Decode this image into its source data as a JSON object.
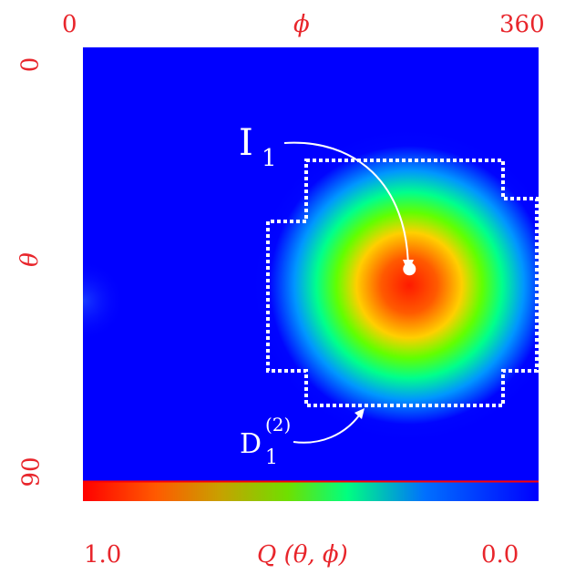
{
  "chart_data": {
    "type": "heatmap",
    "x_axis": {
      "label": "ϕ",
      "range": [
        0,
        360
      ],
      "tick_labels": [
        "0",
        "360"
      ]
    },
    "y_axis": {
      "label": "θ",
      "range": [
        0,
        90
      ],
      "tick_labels": [
        "0",
        "90"
      ],
      "inverted": true
    },
    "colorbar": {
      "label": "Q (θ, ϕ)",
      "range": [
        1.0,
        0.0
      ],
      "tick_labels": [
        "1.0",
        "0.0"
      ],
      "colors": [
        "#ff0000",
        "#ff8000",
        "#c8c800",
        "#40ff00",
        "#00ff80",
        "#0090ff",
        "#0000ff"
      ]
    },
    "peak": {
      "label_main": "I",
      "label_sub": "1",
      "phi": 258,
      "theta": 46,
      "value": 1.0
    },
    "region": {
      "label_main": "D",
      "label_sub": "1",
      "label_sup": "(2)",
      "style": "dotted-white"
    },
    "colors": {
      "axis_text": "#e8252b",
      "background": "#0000ff",
      "annotation": "#ffffff"
    }
  }
}
